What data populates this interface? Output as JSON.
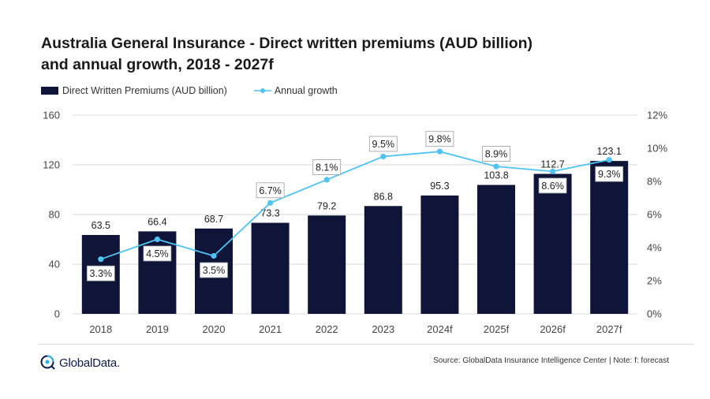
{
  "title": {
    "line1": "Australia General Insurance - Direct written premiums (AUD billion)",
    "line2": "and annual growth, 2018 - 2027f"
  },
  "legend": {
    "bars": "Direct Written Premiums (AUD billion)",
    "line": "Annual growth"
  },
  "colors": {
    "bar": "#0f1538",
    "line": "#4fc3f2"
  },
  "chart_data": {
    "type": "bar",
    "categories": [
      "2018",
      "2019",
      "2020",
      "2021",
      "2022",
      "2023",
      "2024f",
      "2025f",
      "2026f",
      "2027f"
    ],
    "series": [
      {
        "name": "Direct Written Premiums (AUD billion)",
        "type": "bar",
        "values": [
          63.5,
          66.4,
          68.7,
          73.3,
          79.2,
          86.8,
          95.3,
          103.8,
          112.7,
          123.1
        ],
        "labels": [
          "63.5",
          "66.4",
          "68.7",
          "73.3",
          "79.2",
          "86.8",
          "95.3",
          "103.8",
          "112.7",
          "123.1"
        ]
      },
      {
        "name": "Annual growth",
        "type": "line",
        "axis": "right",
        "values": [
          3.3,
          4.5,
          3.5,
          6.7,
          8.1,
          9.5,
          9.8,
          8.9,
          8.6,
          9.3
        ],
        "labels": [
          "3.3%",
          "4.5%",
          "3.5%",
          "6.7%",
          "8.1%",
          "9.5%",
          "9.8%",
          "8.9%",
          "8.6%",
          "9.3%"
        ]
      }
    ],
    "ylim": [
      0,
      160
    ],
    "yticks": [
      0,
      40,
      80,
      120,
      160
    ],
    "ytick_labels": [
      "0",
      "40",
      "80",
      "120",
      "160"
    ],
    "y2lim": [
      0,
      12
    ],
    "y2ticks": [
      0,
      2,
      4,
      6,
      8,
      10,
      12
    ],
    "y2tick_labels": [
      "0%",
      "2%",
      "4%",
      "6%",
      "8%",
      "10%",
      "12%"
    ],
    "grid": true,
    "legend_position": "top-left"
  },
  "footer": {
    "logo": "GlobalData.",
    "source": "Source: GlobalData Insurance Intelligence Center | Note: f: forecast"
  }
}
